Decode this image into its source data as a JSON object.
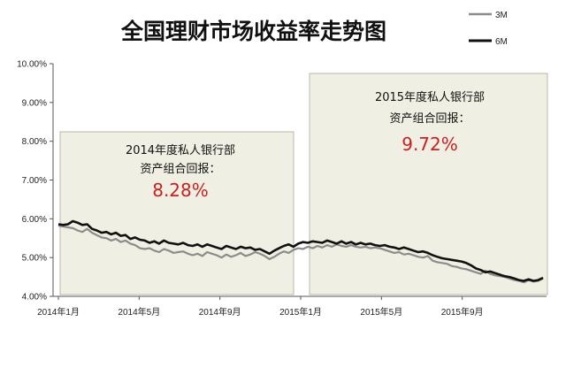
{
  "chart_data": {
    "type": "line",
    "title": "全国理财市场收益率走势图",
    "xlabel": "",
    "ylabel": "",
    "ylim": [
      4.0,
      10.0
    ],
    "yticks": [
      "4.00%",
      "5.00%",
      "6.00%",
      "7.00%",
      "8.00%",
      "9.00%",
      "10.00%"
    ],
    "x_range": [
      "2014-01",
      "2016-01"
    ],
    "xticks": [
      {
        "label": "2014年1月",
        "month": 0
      },
      {
        "label": "2014年5月",
        "month": 4
      },
      {
        "label": "2014年9月",
        "month": 8
      },
      {
        "label": "2015年1月",
        "month": 12
      },
      {
        "label": "2015年5月",
        "month": 16
      },
      {
        "label": "2015年9月",
        "month": 20
      }
    ],
    "legend_position": "top-right",
    "grid": false,
    "series": [
      {
        "name": "3M",
        "color": "#8c8c8c",
        "values": [
          5.82,
          5.8,
          5.78,
          5.76,
          5.7,
          5.66,
          5.74,
          5.64,
          5.58,
          5.52,
          5.5,
          5.44,
          5.48,
          5.4,
          5.44,
          5.36,
          5.32,
          5.24,
          5.22,
          5.24,
          5.18,
          5.14,
          5.22,
          5.18,
          5.12,
          5.14,
          5.16,
          5.1,
          5.06,
          5.1,
          5.04,
          5.14,
          5.1,
          5.06,
          5.0,
          5.08,
          5.02,
          5.06,
          5.12,
          5.04,
          5.08,
          5.14,
          5.1,
          5.04,
          4.96,
          5.02,
          5.1,
          5.16,
          5.12,
          5.2,
          5.24,
          5.22,
          5.28,
          5.24,
          5.3,
          5.26,
          5.32,
          5.28,
          5.34,
          5.3,
          5.28,
          5.32,
          5.28,
          5.26,
          5.28,
          5.24,
          5.26,
          5.24,
          5.2,
          5.16,
          5.12,
          5.14,
          5.08,
          5.1,
          5.06,
          5.02,
          5.0,
          5.04,
          4.92,
          4.88,
          4.86,
          4.84,
          4.78,
          4.76,
          4.72,
          4.7,
          4.66,
          4.62,
          4.58,
          4.66,
          4.58,
          4.54,
          4.52,
          4.5,
          4.46,
          4.42,
          4.4,
          4.36,
          4.42,
          4.38,
          4.4,
          4.46
        ]
      },
      {
        "name": "6M",
        "color": "#111111",
        "values": [
          5.86,
          5.84,
          5.86,
          5.94,
          5.9,
          5.84,
          5.86,
          5.74,
          5.7,
          5.64,
          5.66,
          5.6,
          5.64,
          5.56,
          5.58,
          5.48,
          5.52,
          5.46,
          5.44,
          5.38,
          5.42,
          5.36,
          5.44,
          5.38,
          5.36,
          5.34,
          5.38,
          5.32,
          5.3,
          5.34,
          5.28,
          5.34,
          5.3,
          5.26,
          5.22,
          5.3,
          5.26,
          5.22,
          5.28,
          5.24,
          5.26,
          5.2,
          5.22,
          5.16,
          5.1,
          5.18,
          5.24,
          5.3,
          5.34,
          5.28,
          5.36,
          5.4,
          5.38,
          5.42,
          5.4,
          5.38,
          5.44,
          5.4,
          5.36,
          5.42,
          5.36,
          5.4,
          5.34,
          5.38,
          5.34,
          5.36,
          5.32,
          5.3,
          5.32,
          5.28,
          5.26,
          5.22,
          5.26,
          5.22,
          5.18,
          5.14,
          5.16,
          5.12,
          5.06,
          5.02,
          4.98,
          4.96,
          4.94,
          4.92,
          4.9,
          4.86,
          4.8,
          4.72,
          4.68,
          4.62,
          4.64,
          4.6,
          4.56,
          4.52,
          4.5,
          4.46,
          4.42,
          4.4,
          4.44,
          4.4,
          4.42,
          4.48
        ]
      }
    ],
    "annotations": [
      {
        "line1": "2014年度私人银行部",
        "line2": "资产组合回报：",
        "value": "8.28%"
      },
      {
        "line1": "2015年度私人银行部",
        "line2": "资产组合回报：",
        "value": "9.72%"
      }
    ]
  }
}
